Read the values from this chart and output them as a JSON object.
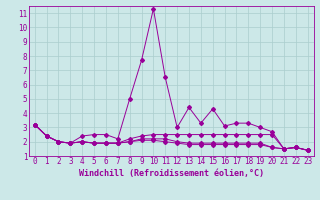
{
  "xlabel": "Windchill (Refroidissement éolien,°C)",
  "background_color": "#cce8e8",
  "grid_color": "#aacece",
  "line_color": "#990099",
  "series": [
    [
      3.2,
      2.4,
      2.0,
      1.9,
      2.4,
      2.5,
      2.5,
      2.2,
      5.0,
      7.7,
      11.3,
      6.5,
      3.0,
      4.4,
      3.3,
      4.3,
      3.1,
      3.3,
      3.3,
      3.0,
      2.7,
      1.5,
      1.6,
      1.4
    ],
    [
      3.2,
      2.4,
      2.0,
      1.9,
      2.0,
      1.9,
      1.9,
      1.9,
      2.2,
      2.4,
      2.5,
      2.5,
      2.5,
      2.5,
      2.5,
      2.5,
      2.5,
      2.5,
      2.5,
      2.5,
      2.5,
      1.5,
      1.6,
      1.4
    ],
    [
      3.2,
      2.4,
      2.0,
      1.9,
      2.0,
      1.9,
      1.9,
      1.9,
      2.0,
      2.2,
      2.2,
      2.2,
      2.0,
      1.9,
      1.9,
      1.9,
      1.9,
      1.9,
      1.9,
      1.9,
      1.6,
      1.5,
      1.6,
      1.4
    ],
    [
      3.2,
      2.4,
      2.0,
      1.9,
      2.0,
      1.9,
      1.9,
      1.9,
      2.0,
      2.1,
      2.1,
      2.0,
      1.9,
      1.8,
      1.8,
      1.8,
      1.8,
      1.8,
      1.8,
      1.8,
      1.6,
      1.5,
      1.6,
      1.4
    ]
  ],
  "x_values": [
    0,
    1,
    2,
    3,
    4,
    5,
    6,
    7,
    8,
    9,
    10,
    11,
    12,
    13,
    14,
    15,
    16,
    17,
    18,
    19,
    20,
    21,
    22,
    23
  ],
  "ylim": [
    1,
    11.5
  ],
  "xlim": [
    -0.5,
    23.5
  ],
  "yticks": [
    1,
    2,
    3,
    4,
    5,
    6,
    7,
    8,
    9,
    10,
    11
  ],
  "xtick_labels": [
    "0",
    "1",
    "2",
    "3",
    "4",
    "5",
    "6",
    "7",
    "8",
    "9",
    "10",
    "11",
    "12",
    "13",
    "14",
    "15",
    "16",
    "17",
    "18",
    "19",
    "20",
    "21",
    "22",
    "23"
  ],
  "tick_fontsize": 5.5,
  "xlabel_fontsize": 6.0
}
